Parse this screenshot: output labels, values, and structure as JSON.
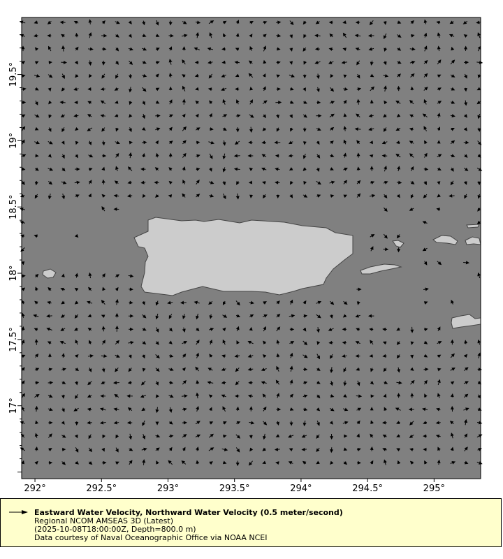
{
  "map": {
    "x_ticks": [
      "292°",
      "292.5°",
      "293°",
      "293.5°",
      "294°",
      "294.5°",
      "295°"
    ],
    "x_tick_values": [
      292,
      292.5,
      293,
      293.5,
      294,
      294.5,
      295
    ],
    "y_ticks": [
      "19.5°",
      "19°",
      "18.5°",
      "18°",
      "17.5°",
      "17°"
    ],
    "y_tick_values": [
      19.5,
      19,
      18.5,
      18,
      17.5,
      17
    ],
    "lon_range": [
      291.9,
      295.35
    ],
    "lat_range": [
      16.45,
      19.93
    ],
    "ocean_color": "#808080",
    "land_color": "#cccccc",
    "vector_color": "#000000"
  },
  "legend": {
    "title": "Eastward Water Velocity, Northward Water Velocity (0.5 meter/second)",
    "dataset": "Regional NCOM AMSEAS 3D (Latest)",
    "time_depth": "(2025-10-08T18:00:00Z, Depth=800.0 m)",
    "credit": "Data courtesy of Naval Oceanographic Office via NOAA NCEI",
    "background": "#ffffcc"
  }
}
